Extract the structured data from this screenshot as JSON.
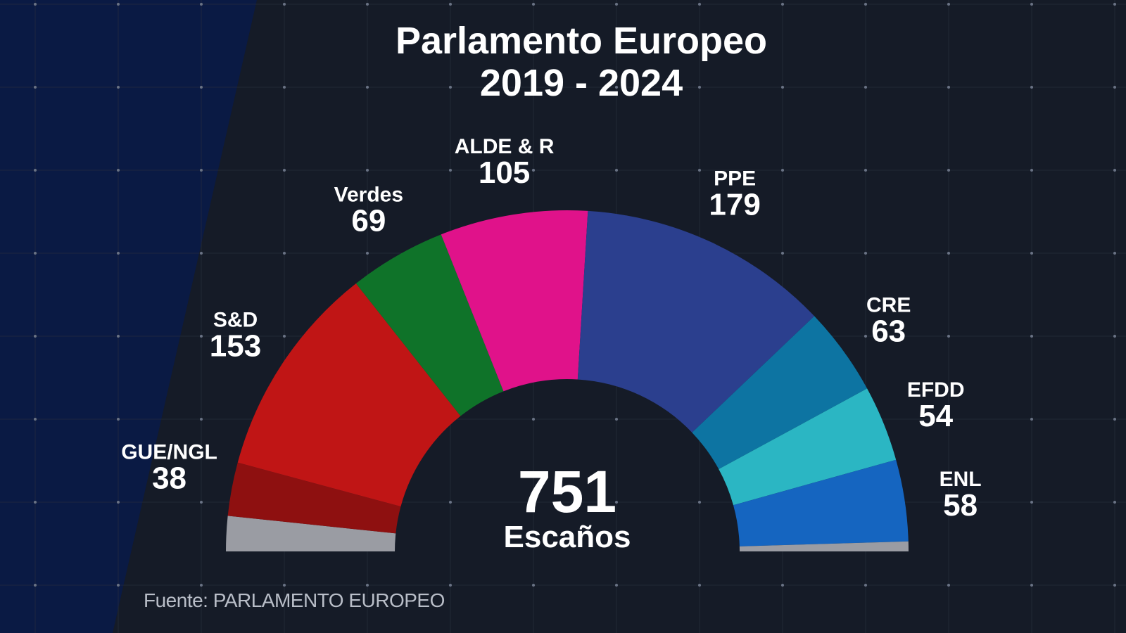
{
  "chart_data": {
    "type": "parliament-semicircle",
    "title": "Parlamento Europeo",
    "subtitle": "2019 - 2024",
    "center_value": "751",
    "center_label": "Escaños",
    "source": "Fuente: PARLAMENTO EUROPEO",
    "total": 751,
    "segments": [
      {
        "name": "",
        "value": 25,
        "color": "#9a9ca3"
      },
      {
        "name": "GUE/NGL",
        "value": 38,
        "color": "#8e1010"
      },
      {
        "name": "S&D",
        "value": 153,
        "color": "#c01515"
      },
      {
        "name": "Verdes",
        "value": 69,
        "color": "#0f7329"
      },
      {
        "name": "ALDE & R",
        "value": 105,
        "color": "#e0128a"
      },
      {
        "name": "PPE",
        "value": 179,
        "color": "#2b3f8e"
      },
      {
        "name": "CRE",
        "value": 63,
        "color": "#0d74a2"
      },
      {
        "name": "EFDD",
        "value": 54,
        "color": "#2bb6c3"
      },
      {
        "name": "ENL",
        "value": 58,
        "color": "#1565c0"
      },
      {
        "name": "",
        "value": 7,
        "color": "#9a9ca3"
      }
    ]
  }
}
